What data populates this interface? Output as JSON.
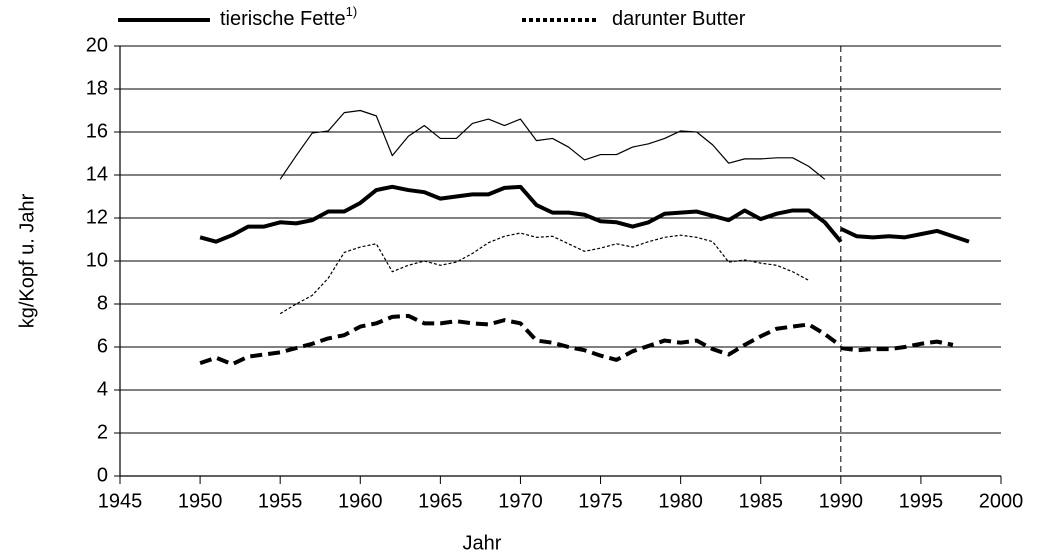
{
  "chart_data": {
    "type": "line",
    "xlabel": "Jahr",
    "ylabel": "kg/Kopf u. Jahr",
    "footnote_mark": "1)",
    "xlim": [
      1945,
      2000
    ],
    "xticks": [
      1945,
      1950,
      1955,
      1960,
      1965,
      1970,
      1975,
      1980,
      1985,
      1990,
      1995,
      2000
    ],
    "ylim": [
      0,
      20
    ],
    "yticks": [
      0,
      2,
      4,
      6,
      8,
      10,
      12,
      14,
      16,
      18,
      20
    ],
    "grid": true,
    "vline": 1990,
    "series": [
      {
        "name": "tierische Fette",
        "color": "#000000",
        "style": "solid",
        "width": 4,
        "x": [
          1950,
          1951,
          1952,
          1953,
          1954,
          1955,
          1956,
          1957,
          1958,
          1959,
          1960,
          1961,
          1962,
          1963,
          1964,
          1965,
          1966,
          1967,
          1968,
          1969,
          1970,
          1971,
          1972,
          1973,
          1974,
          1975,
          1976,
          1977,
          1978,
          1979,
          1980,
          1981,
          1982,
          1983,
          1984,
          1985,
          1986,
          1987,
          1988,
          1989,
          1990
        ],
        "values": [
          11.1,
          10.9,
          11.2,
          11.6,
          11.6,
          11.8,
          11.75,
          11.9,
          12.3,
          12.3,
          12.7,
          13.3,
          13.45,
          13.3,
          13.2,
          12.9,
          13.0,
          13.1,
          13.1,
          13.4,
          13.45,
          12.6,
          12.25,
          12.25,
          12.15,
          11.85,
          11.8,
          11.6,
          11.8,
          12.2,
          12.25,
          12.3,
          12.1,
          11.9,
          12.35,
          11.95,
          12.2,
          12.35,
          12.35,
          11.8,
          10.9
        ]
      },
      {
        "color": "#000000",
        "style": "solid",
        "width": 4,
        "x": [
          1990,
          1991,
          1992,
          1993,
          1994,
          1995,
          1996,
          1997,
          1998
        ],
        "values": [
          11.5,
          11.15,
          11.1,
          11.15,
          11.1,
          11.25,
          11.4,
          11.15,
          10.9
        ]
      },
      {
        "name": "darunter Butter",
        "color": "#000000",
        "style": "dashed",
        "width": 4,
        "x": [
          1950,
          1951,
          1952,
          1953,
          1954,
          1955,
          1956,
          1957,
          1958,
          1959,
          1960,
          1961,
          1962,
          1963,
          1964,
          1965,
          1966,
          1967,
          1968,
          1969,
          1970,
          1971,
          1972,
          1973,
          1974,
          1975,
          1976,
          1977,
          1978,
          1979,
          1980,
          1981,
          1982,
          1983,
          1984,
          1985,
          1986,
          1987,
          1988,
          1989,
          1990
        ],
        "values": [
          5.25,
          5.5,
          5.2,
          5.55,
          5.65,
          5.75,
          5.95,
          6.15,
          6.4,
          6.55,
          6.95,
          7.1,
          7.4,
          7.45,
          7.1,
          7.1,
          7.2,
          7.1,
          7.05,
          7.25,
          7.1,
          6.3,
          6.2,
          6.0,
          5.85,
          5.6,
          5.4,
          5.8,
          6.05,
          6.3,
          6.2,
          6.3,
          5.9,
          5.65,
          6.1,
          6.5,
          6.85,
          6.95,
          7.05,
          6.6,
          6.05
        ]
      },
      {
        "color": "#000000",
        "style": "dashed",
        "width": 4,
        "x": [
          1990,
          1991,
          1992,
          1993,
          1994,
          1995,
          1996,
          1997
        ],
        "values": [
          5.95,
          5.85,
          5.9,
          5.9,
          6.0,
          6.15,
          6.25,
          6.1
        ]
      },
      {
        "color": "#000000",
        "style": "solid",
        "width": 1.2,
        "x": [
          1955,
          1956,
          1957,
          1958,
          1959,
          1960,
          1961,
          1962,
          1963,
          1964,
          1965,
          1966,
          1967,
          1968,
          1969,
          1970,
          1971,
          1972,
          1973,
          1974,
          1975,
          1976,
          1977,
          1978,
          1979,
          1980,
          1981,
          1982,
          1983,
          1984,
          1985,
          1986,
          1987,
          1988,
          1989
        ],
        "values": [
          13.8,
          14.9,
          15.95,
          16.05,
          16.9,
          17.0,
          16.75,
          14.9,
          15.8,
          16.3,
          15.7,
          15.7,
          16.4,
          16.6,
          16.3,
          16.6,
          15.6,
          15.7,
          15.3,
          14.7,
          14.95,
          14.95,
          15.3,
          15.45,
          15.7,
          16.05,
          16.0,
          15.4,
          14.55,
          14.75,
          14.75,
          14.8,
          14.8,
          14.4,
          13.8
        ]
      },
      {
        "color": "#000000",
        "style": "dotted",
        "width": 1.2,
        "x": [
          1955,
          1956,
          1957,
          1958,
          1959,
          1960,
          1961,
          1962,
          1963,
          1964,
          1965,
          1966,
          1967,
          1968,
          1969,
          1970,
          1971,
          1972,
          1973,
          1974,
          1975,
          1976,
          1977,
          1978,
          1979,
          1980,
          1981,
          1982,
          1983,
          1984,
          1985,
          1986,
          1987,
          1988
        ],
        "values": [
          7.55,
          8.0,
          8.4,
          9.2,
          10.4,
          10.65,
          10.8,
          9.5,
          9.8,
          10.0,
          9.8,
          9.95,
          10.35,
          10.85,
          11.15,
          11.3,
          11.1,
          11.15,
          10.8,
          10.45,
          10.6,
          10.8,
          10.65,
          10.9,
          11.1,
          11.2,
          11.1,
          10.9,
          9.95,
          10.05,
          9.9,
          9.8,
          9.5,
          9.1
        ]
      }
    ]
  }
}
